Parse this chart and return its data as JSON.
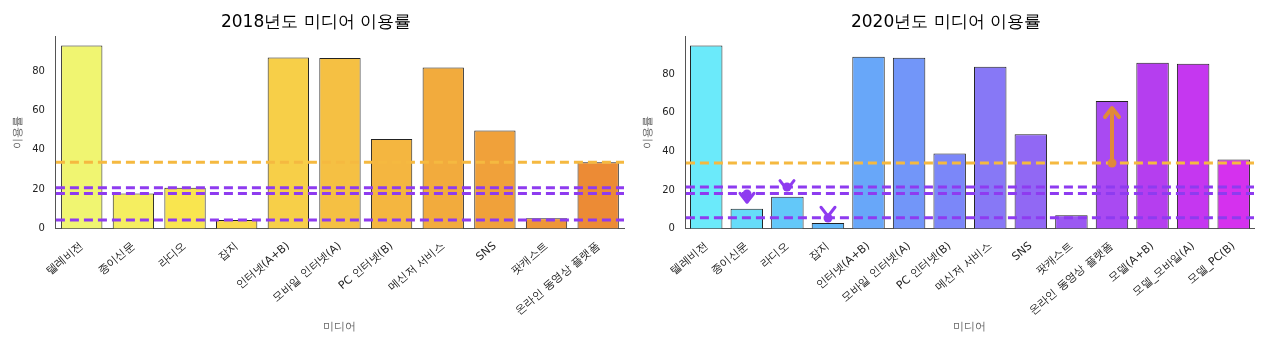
{
  "chart_data": [
    {
      "type": "bar",
      "title": "2018년도 미디어 이용률",
      "xlabel": "미디어",
      "ylabel": "이용률",
      "categories": [
        "텔레비전",
        "종이신문",
        "라디오",
        "잡지",
        "인터넷(A+B)",
        "모바일 인터넷(A)",
        "PC 인터넷(B)",
        "메신저 서비스",
        "SNS",
        "팟캐스트",
        "온라인 동영상 플랫폼"
      ],
      "values": [
        93.1,
        17.8,
        20.7,
        4.3,
        87.0,
        86.7,
        45.5,
        81.9,
        49.8,
        5.2,
        33.7
      ],
      "colors": [
        "#f0f571",
        "#f5ee60",
        "#f9e54f",
        "#f9d84a",
        "#f7cf48",
        "#f5c043",
        "#f4b640",
        "#f2ab3d",
        "#f0a13a",
        "#ee9638",
        "#ec8b35"
      ],
      "ylim": [
        0,
        97.7
      ],
      "yticks": [
        0,
        20,
        40,
        60,
        80
      ],
      "grid": false,
      "ref_lines": [
        {
          "axis": "y",
          "value": 33.7,
          "color": "#f5b940",
          "line_style": "dashed"
        },
        {
          "axis": "y",
          "value": 20.7,
          "color": "#8e3bf0",
          "line_style": "dashed"
        },
        {
          "axis": "y",
          "value": 17.8,
          "color": "#8e3bf0",
          "line_style": "dashed"
        },
        {
          "axis": "y",
          "value": 4.3,
          "color": "#8e3bf0",
          "line_style": "dashed"
        }
      ]
    },
    {
      "type": "bar",
      "title": "2020년도 미디어 이용률",
      "xlabel": "미디어",
      "ylabel": "이용률",
      "categories": [
        "텔레비전",
        "종이신문",
        "라디오",
        "잡지",
        "인터넷(A+B)",
        "모바일 인터넷(A)",
        "PC 인터넷(B)",
        "메신저 서비스",
        "SNS",
        "팟캐스트",
        "온라인 동영상 플랫폼",
        "모델(A+B)",
        "모델_모바일(A)",
        "모델_PC(B)"
      ],
      "values": [
        94.8,
        10.2,
        16.5,
        2.9,
        88.9,
        88.5,
        38.9,
        83.8,
        48.8,
        6.9,
        66.1,
        85.9,
        85.3,
        35.8
      ],
      "colors": [
        "#6beafa",
        "#66dcf9",
        "#63c8f9",
        "#62b8f9",
        "#68a7f9",
        "#7296f9",
        "#7b87f9",
        "#8778f6",
        "#9168f4",
        "#9b58f2",
        "#a94af2",
        "#b53eef",
        "#c537f0",
        "#d531ee"
      ],
      "ylim": [
        0,
        99.5
      ],
      "yticks": [
        0,
        20,
        40,
        60,
        80
      ],
      "grid": false,
      "ref_lines": [
        {
          "axis": "y",
          "value": 34.0,
          "color": "#f5b940",
          "line_style": "dashed"
        },
        {
          "axis": "y",
          "value": 21.5,
          "color": "#8e3bf0",
          "line_style": "dashed"
        },
        {
          "axis": "y",
          "value": 18.1,
          "color": "#8e3bf0",
          "line_style": "dashed"
        },
        {
          "axis": "y",
          "value": 5.6,
          "color": "#8e3bf0",
          "line_style": "dashed"
        }
      ]
    }
  ]
}
